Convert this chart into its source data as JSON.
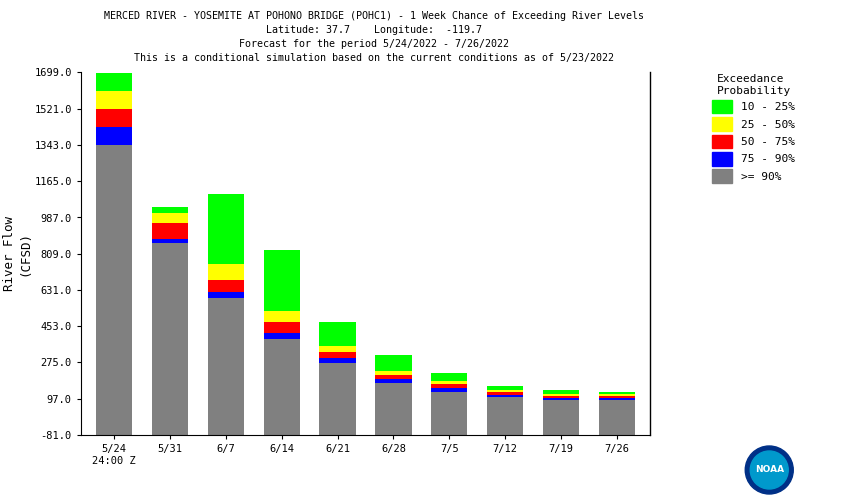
{
  "title_line1": "MERCED RIVER - YOSEMITE AT POHONO BRIDGE (POHC1) - 1 Week Chance of Exceeding River Levels",
  "title_line2": "Latitude: 37.7    Longitude:  -119.7",
  "title_line3": "Forecast for the period 5/24/2022 - 7/26/2022",
  "title_line4": "This is a conditional simulation based on the current conditions as of 5/23/2022",
  "ylabel": "River Flow\n(CFSD)",
  "categories": [
    "5/24\n24:00 Z",
    "5/31",
    "6/7",
    "6/14",
    "6/21",
    "6/28",
    "7/5",
    "7/12",
    "7/19",
    "7/26"
  ],
  "ylim": [
    -81,
    1699
  ],
  "yticks": [
    -81,
    97,
    275,
    453,
    631,
    809,
    987,
    1165,
    1343,
    1521,
    1699
  ],
  "bar_bottom": -81,
  "colors": {
    "ge90": "#808080",
    "p75_90": "#0000ff",
    "p50_75": "#ff0000",
    "p25_50": "#ffff00",
    "p10_25": "#00ff00"
  },
  "legend_labels": [
    "10 - 25%",
    "25 - 50%",
    "50 - 75%",
    "75 - 90%",
    ">= 90%"
  ],
  "legend_colors": [
    "#00ff00",
    "#ffff00",
    "#ff0000",
    "#0000ff",
    "#808080"
  ],
  "bars": {
    "ge90": [
      1424,
      941,
      671,
      471,
      356,
      256,
      211,
      186,
      171,
      171
    ],
    "p75_90": [
      87,
      20,
      30,
      30,
      20,
      20,
      20,
      10,
      10,
      10
    ],
    "p50_75": [
      91,
      80,
      60,
      55,
      30,
      20,
      20,
      15,
      10,
      10
    ],
    "p25_50": [
      89,
      50,
      80,
      55,
      30,
      20,
      15,
      10,
      10,
      10
    ],
    "p10_25": [
      89,
      30,
      340,
      295,
      120,
      75,
      40,
      20,
      20,
      10
    ]
  },
  "background_color": "#ffffff"
}
